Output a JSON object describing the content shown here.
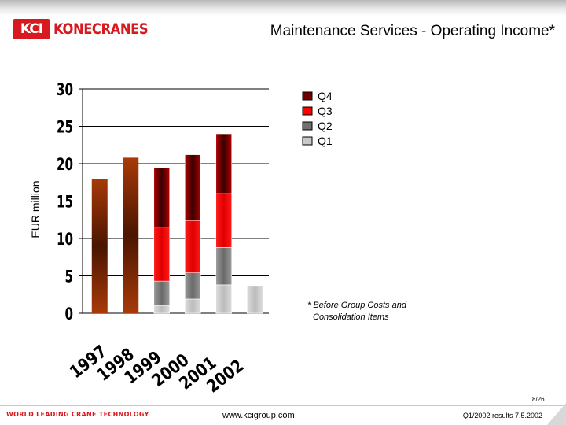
{
  "header": {
    "logo_mark": "KCI",
    "logo_text": "KONECRANES",
    "title": "Maintenance Services - Operating Income*"
  },
  "footnote": {
    "line1": "* Before Group Costs and",
    "line2": "Consolidation Items"
  },
  "footer": {
    "tagline": "WORLD LEADING CRANE TECHNOLOGY",
    "url": "www.kcigroup.com",
    "date": "Q1/2002 results 7.5.2002",
    "page": "8/26"
  },
  "colors": {
    "Q4": "#700000",
    "Q3": "#ff0000",
    "Q2": "#808080",
    "Q1": "#c8c8c8",
    "annual": "#8b2d00"
  },
  "chart_data": {
    "type": "bar",
    "title": "Maintenance Services - Operating Income*",
    "ylabel": "EUR million",
    "xlabel": "",
    "ylim": [
      0,
      30
    ],
    "yticks": [
      0,
      5,
      10,
      15,
      20,
      25,
      30
    ],
    "categories": [
      "1997",
      "1998",
      "1999",
      "2000",
      "2001",
      "2002"
    ],
    "annual_totals": [
      18.0,
      20.8,
      null,
      null,
      null,
      null
    ],
    "series": [
      {
        "name": "Q1",
        "values": [
          null,
          null,
          1.0,
          1.9,
          3.8,
          3.6
        ]
      },
      {
        "name": "Q2",
        "values": [
          null,
          null,
          3.3,
          3.5,
          5.0,
          null
        ]
      },
      {
        "name": "Q3",
        "values": [
          null,
          null,
          7.2,
          7.0,
          7.2,
          null
        ]
      },
      {
        "name": "Q4",
        "values": [
          null,
          null,
          7.9,
          8.8,
          8.0,
          null
        ]
      }
    ],
    "legend": [
      "Q4",
      "Q3",
      "Q2",
      "Q1"
    ],
    "legend_position": "top-right"
  }
}
